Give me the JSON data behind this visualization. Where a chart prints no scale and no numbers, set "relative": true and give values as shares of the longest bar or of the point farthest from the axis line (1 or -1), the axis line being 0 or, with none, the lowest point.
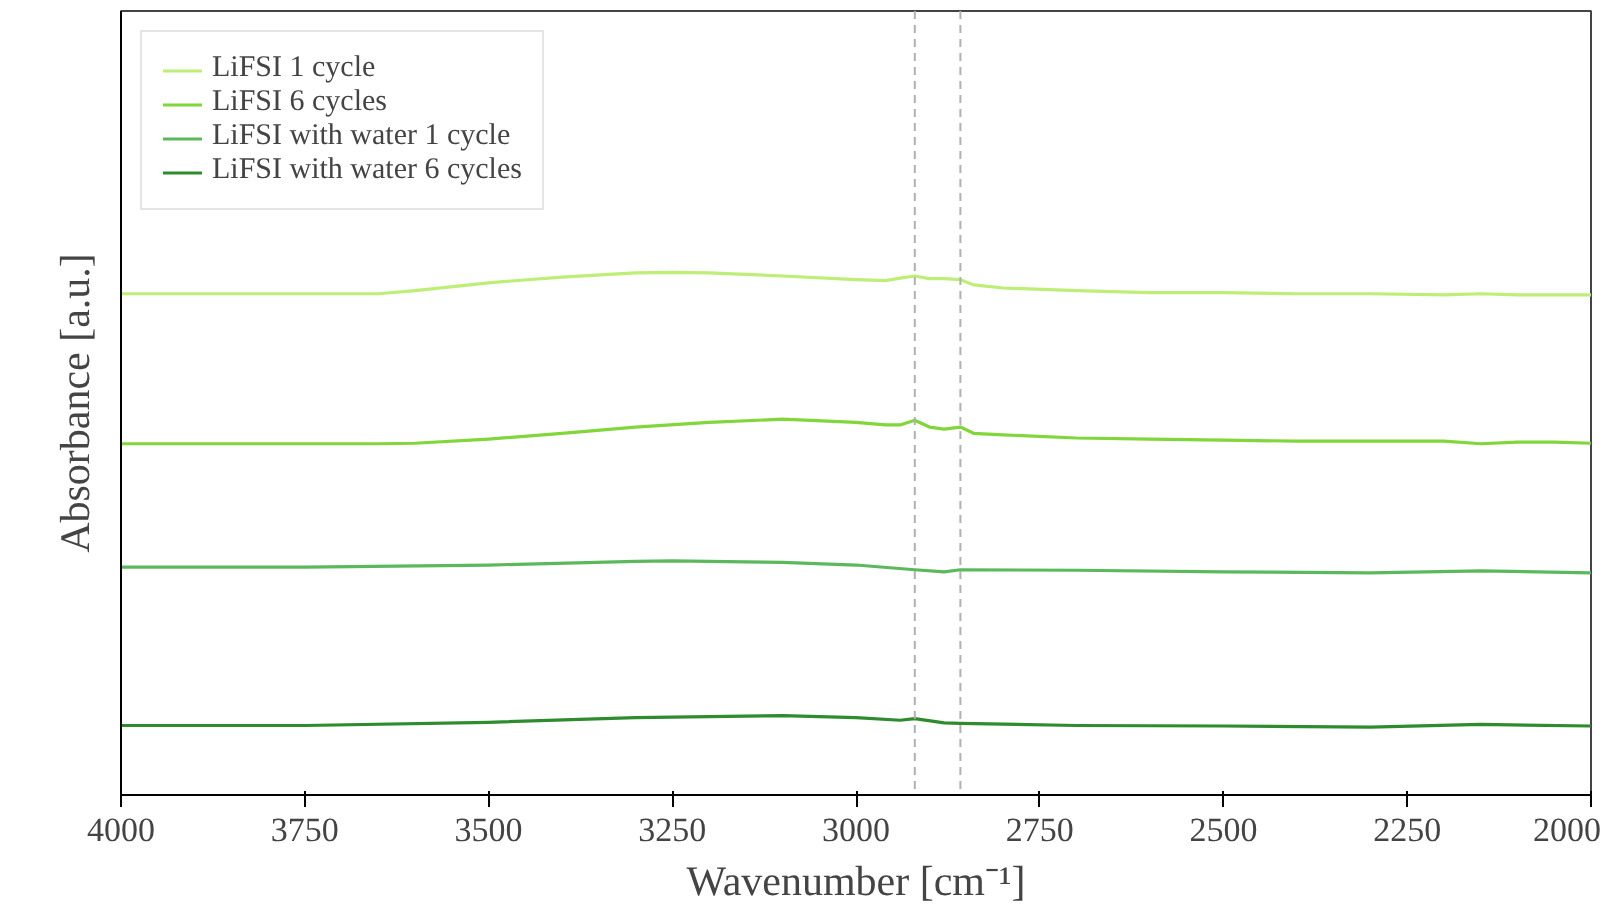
{
  "chart_data": {
    "type": "line",
    "relative": true,
    "xlabel": "Wavenumber [cm⁻¹]",
    "ylabel": "Absorbance [a.u.]",
    "xlim": [
      4000,
      2000
    ],
    "xticks": [
      4000,
      3750,
      3500,
      3250,
      3000,
      2750,
      2500,
      2250,
      2000
    ],
    "grid": false,
    "legend": "top left",
    "tick_labels": "x",
    "line_style": "solid",
    "marker": "none",
    "ref_lines": [
      {
        "axis": "x",
        "value": 2920,
        "color": "#b0b0b0",
        "line_style": "dashed"
      },
      {
        "axis": "x",
        "value": 2858,
        "color": "#b0b0b0",
        "line_style": "dashed"
      }
    ],
    "series": [
      {
        "name": "LiFSI 1 cycle",
        "color": "#bdee76",
        "x": [
          4000,
          3900,
          3800,
          3700,
          3650,
          3600,
          3500,
          3400,
          3300,
          3250,
          3200,
          3100,
          3000,
          2960,
          2940,
          2920,
          2900,
          2880,
          2858,
          2840,
          2800,
          2700,
          2600,
          2500,
          2400,
          2300,
          2200,
          2150,
          2100,
          2050,
          2000
        ],
        "values": [
          0.959,
          0.959,
          0.959,
          0.959,
          0.959,
          0.965,
          0.98,
          0.991,
          0.999,
          1.0,
          0.999,
          0.993,
          0.986,
          0.984,
          0.989,
          0.993,
          0.988,
          0.988,
          0.986,
          0.976,
          0.97,
          0.965,
          0.961,
          0.961,
          0.959,
          0.959,
          0.957,
          0.959,
          0.957,
          0.957,
          0.957
        ]
      },
      {
        "name": "LiFSI 6 cycles",
        "color": "#80d63a",
        "x": [
          4000,
          3900,
          3800,
          3700,
          3650,
          3600,
          3500,
          3400,
          3300,
          3200,
          3100,
          3000,
          2960,
          2940,
          2920,
          2900,
          2880,
          2858,
          2840,
          2800,
          2700,
          2600,
          2500,
          2400,
          2300,
          2200,
          2150,
          2100,
          2050,
          2000
        ],
        "values": [
          0.672,
          0.672,
          0.672,
          0.672,
          0.672,
          0.673,
          0.681,
          0.692,
          0.704,
          0.713,
          0.719,
          0.713,
          0.708,
          0.708,
          0.717,
          0.704,
          0.7,
          0.704,
          0.692,
          0.689,
          0.683,
          0.681,
          0.679,
          0.677,
          0.677,
          0.677,
          0.672,
          0.675,
          0.675,
          0.673
        ]
      },
      {
        "name": "LiFSI with water 1 cycle",
        "color": "#5cb85c",
        "x": [
          4000,
          3750,
          3500,
          3300,
          3250,
          3100,
          3000,
          2920,
          2880,
          2858,
          2700,
          2500,
          2300,
          2150,
          2000
        ],
        "values": [
          0.436,
          0.436,
          0.44,
          0.447,
          0.448,
          0.445,
          0.44,
          0.431,
          0.427,
          0.431,
          0.43,
          0.427,
          0.425,
          0.429,
          0.425
        ]
      },
      {
        "name": "LiFSI with water 6 cycles",
        "color": "#2e8b2e",
        "x": [
          4000,
          3750,
          3500,
          3300,
          3100,
          3000,
          2940,
          2920,
          2880,
          2858,
          2700,
          2500,
          2300,
          2150,
          2000
        ],
        "values": [
          0.133,
          0.133,
          0.139,
          0.148,
          0.152,
          0.148,
          0.143,
          0.146,
          0.138,
          0.137,
          0.133,
          0.132,
          0.13,
          0.135,
          0.132
        ]
      }
    ]
  }
}
